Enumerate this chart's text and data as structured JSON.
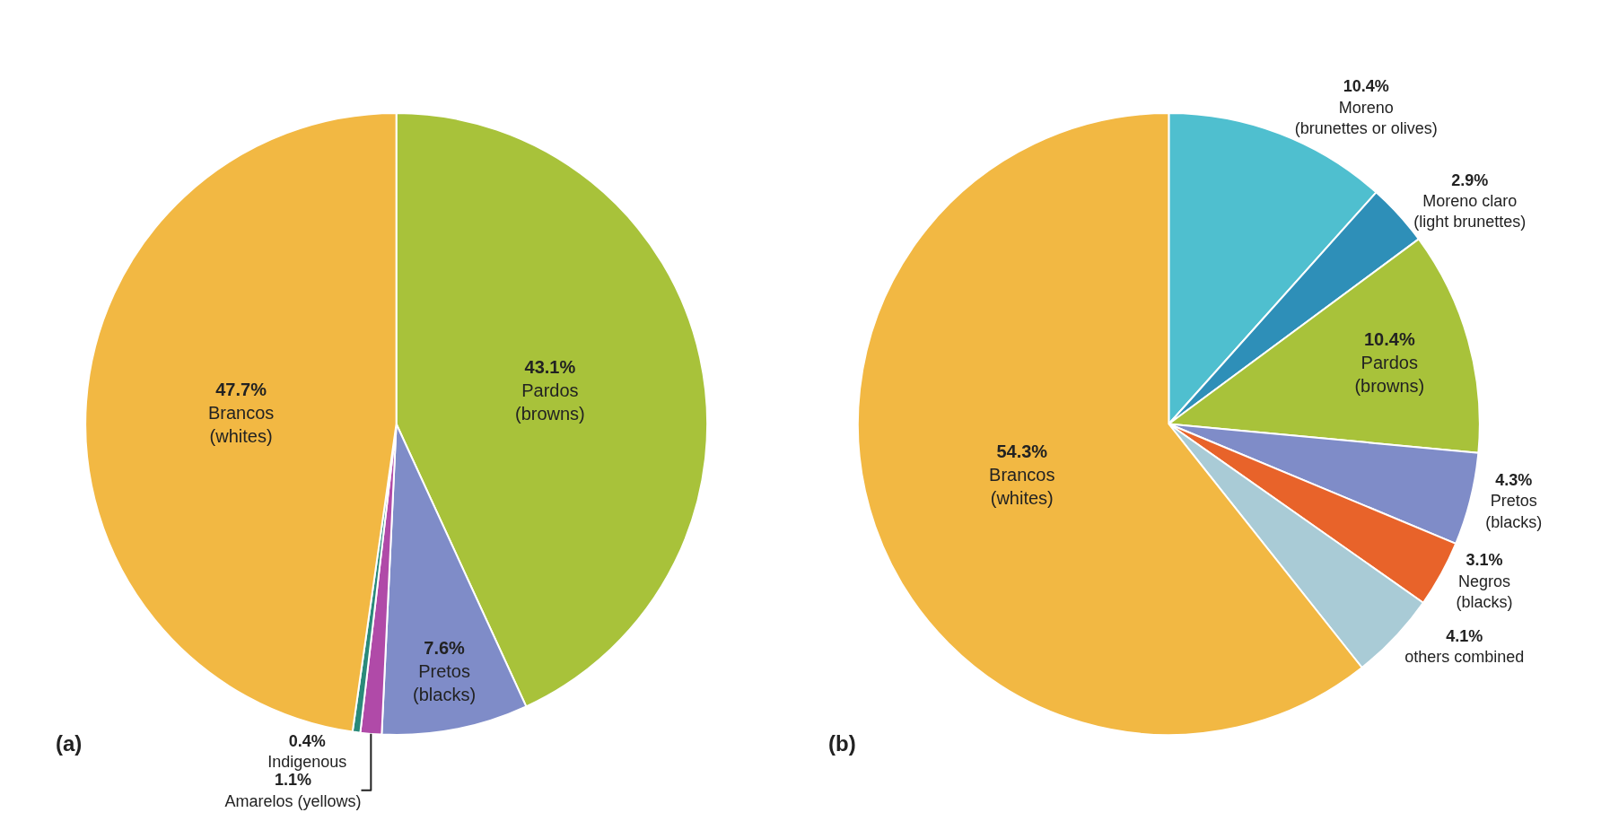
{
  "chart_data": [
    {
      "type": "pie",
      "annotations": [
        "(a)"
      ],
      "categories": [
        "Pardos (browns)",
        "Pretos (blacks)",
        "Amarelos (yellows)",
        "Indigenous",
        "Brancos (whites)"
      ],
      "values": [
        43.1,
        7.6,
        1.1,
        0.4,
        47.7
      ],
      "value_labels": [
        "43.1%",
        "7.6%",
        "1.1%",
        "0.4%",
        "47.7%"
      ],
      "colors": [
        "#a8c23a",
        "#7f8cc8",
        "#b04aa8",
        "#2a8a7a",
        "#f2b843"
      ]
    },
    {
      "type": "pie",
      "annotations": [
        "(b)"
      ],
      "categories": [
        "Moreno (brunettes or olives)",
        "Moreno claro (light brunettes)",
        "Pardos (browns)",
        "Pretos (blacks)",
        "Negros (blacks)",
        "others combined",
        "Brancos (whites)"
      ],
      "values": [
        10.4,
        2.9,
        10.4,
        4.3,
        3.1,
        4.1,
        54.3
      ],
      "value_labels": [
        "10.4%",
        "2.9%",
        "10.4%",
        "4.3%",
        "3.1%",
        "4.1%",
        "54.3%"
      ],
      "colors": [
        "#4fbfcf",
        "#2e8fb8",
        "#a8c23a",
        "#7f8cc8",
        "#e8632a",
        "#a9cbd6",
        "#f2b843"
      ]
    }
  ]
}
